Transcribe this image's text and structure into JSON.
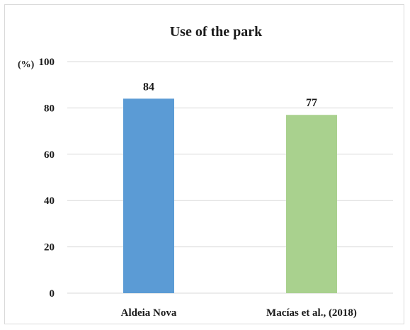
{
  "chart_data": {
    "type": "bar",
    "title": "Use of the park",
    "ylabel": "(%)",
    "xlabel": "",
    "categories": [
      "Aldeia Nova",
      "Macías et al., (2018)"
    ],
    "values": [
      84,
      77
    ],
    "data_labels": [
      "84",
      "77"
    ],
    "bar_colors": [
      "#5b9bd5",
      "#a9d18e"
    ],
    "ylim": [
      0,
      100
    ],
    "yticks": [
      0,
      20,
      40,
      60,
      80,
      100
    ],
    "grid": true,
    "legend": "none"
  }
}
